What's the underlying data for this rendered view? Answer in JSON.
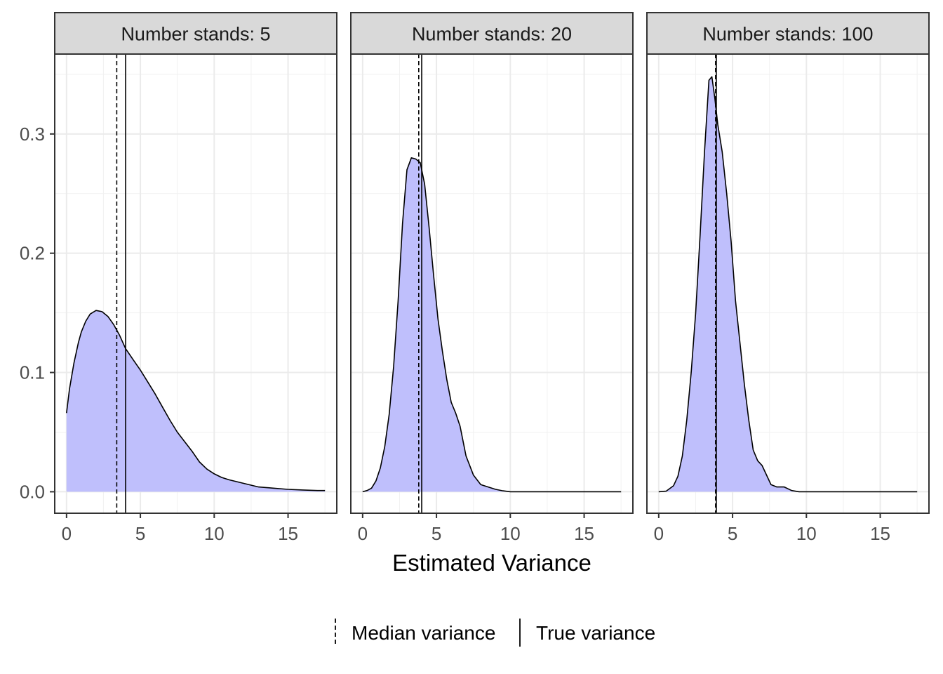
{
  "chart_data": {
    "type": "area",
    "xlabel": "Estimated Variance",
    "ylabel": "",
    "xlim": [
      -0.8,
      18.3
    ],
    "ylim": [
      -0.018,
      0.367
    ],
    "x_ticks": [
      0,
      5,
      10,
      15
    ],
    "x_tick_labels": [
      "0",
      "5",
      "10",
      "15"
    ],
    "y_ticks": [
      0.0,
      0.1,
      0.2,
      0.3
    ],
    "y_tick_labels": [
      "0.0",
      "0.1",
      "0.2",
      "0.3"
    ],
    "grid": true,
    "fill_color": "#bfbffc",
    "line_color": "#000000",
    "legend_position": "bottom",
    "legend": [
      {
        "label": "Median variance",
        "linetype": "dashed"
      },
      {
        "label": "True variance",
        "linetype": "solid"
      }
    ],
    "panels": [
      {
        "strip": "Number stands: 5",
        "median_variance": 3.4,
        "true_variance": 4.0,
        "x": [
          0,
          0.2,
          0.5,
          0.8,
          1.0,
          1.3,
          1.6,
          2.0,
          2.4,
          2.8,
          3.2,
          3.6,
          4.0,
          4.5,
          5.0,
          5.5,
          6.0,
          6.5,
          7.0,
          7.5,
          8.0,
          8.5,
          9.0,
          9.5,
          10.0,
          10.5,
          11.0,
          12.0,
          13.0,
          14.0,
          15.0,
          16.0,
          17.0,
          17.5
        ],
        "y": [
          0.066,
          0.086,
          0.108,
          0.125,
          0.134,
          0.143,
          0.149,
          0.152,
          0.151,
          0.147,
          0.14,
          0.131,
          0.12,
          0.111,
          0.102,
          0.092,
          0.082,
          0.071,
          0.06,
          0.05,
          0.042,
          0.034,
          0.025,
          0.019,
          0.015,
          0.012,
          0.01,
          0.007,
          0.004,
          0.003,
          0.002,
          0.0015,
          0.001,
          0.001
        ]
      },
      {
        "strip": "Number stands: 20",
        "median_variance": 3.8,
        "true_variance": 4.0,
        "x": [
          0,
          0.3,
          0.6,
          0.9,
          1.2,
          1.5,
          1.8,
          2.1,
          2.4,
          2.7,
          3.0,
          3.3,
          3.6,
          3.9,
          4.2,
          4.5,
          4.8,
          5.1,
          5.4,
          5.7,
          6.0,
          6.3,
          6.6,
          7.0,
          7.5,
          8.0,
          8.5,
          9.0,
          9.5,
          10.0,
          12.0,
          15.0,
          17.5
        ],
        "y": [
          0,
          0.001,
          0.003,
          0.009,
          0.02,
          0.038,
          0.065,
          0.105,
          0.16,
          0.225,
          0.27,
          0.28,
          0.279,
          0.276,
          0.258,
          0.222,
          0.182,
          0.145,
          0.118,
          0.094,
          0.075,
          0.066,
          0.055,
          0.03,
          0.014,
          0.006,
          0.004,
          0.002,
          0.0008,
          0,
          0,
          0,
          0
        ]
      },
      {
        "strip": "Number stands: 100",
        "median_variance": 3.85,
        "true_variance": 3.9,
        "x": [
          0,
          0.5,
          1.0,
          1.3,
          1.6,
          1.9,
          2.2,
          2.5,
          2.8,
          3.1,
          3.4,
          3.6,
          3.8,
          4.0,
          4.3,
          4.6,
          4.9,
          5.2,
          5.5,
          5.8,
          6.1,
          6.4,
          6.7,
          7.0,
          7.3,
          7.6,
          8.0,
          8.5,
          9.0,
          9.5,
          12.0,
          15.0,
          17.5
        ],
        "y": [
          0,
          0.0005,
          0.005,
          0.013,
          0.03,
          0.06,
          0.1,
          0.15,
          0.215,
          0.285,
          0.345,
          0.348,
          0.33,
          0.308,
          0.285,
          0.25,
          0.21,
          0.16,
          0.125,
          0.09,
          0.06,
          0.035,
          0.026,
          0.022,
          0.014,
          0.006,
          0.004,
          0.004,
          0.001,
          0,
          0,
          0,
          0
        ]
      }
    ]
  }
}
